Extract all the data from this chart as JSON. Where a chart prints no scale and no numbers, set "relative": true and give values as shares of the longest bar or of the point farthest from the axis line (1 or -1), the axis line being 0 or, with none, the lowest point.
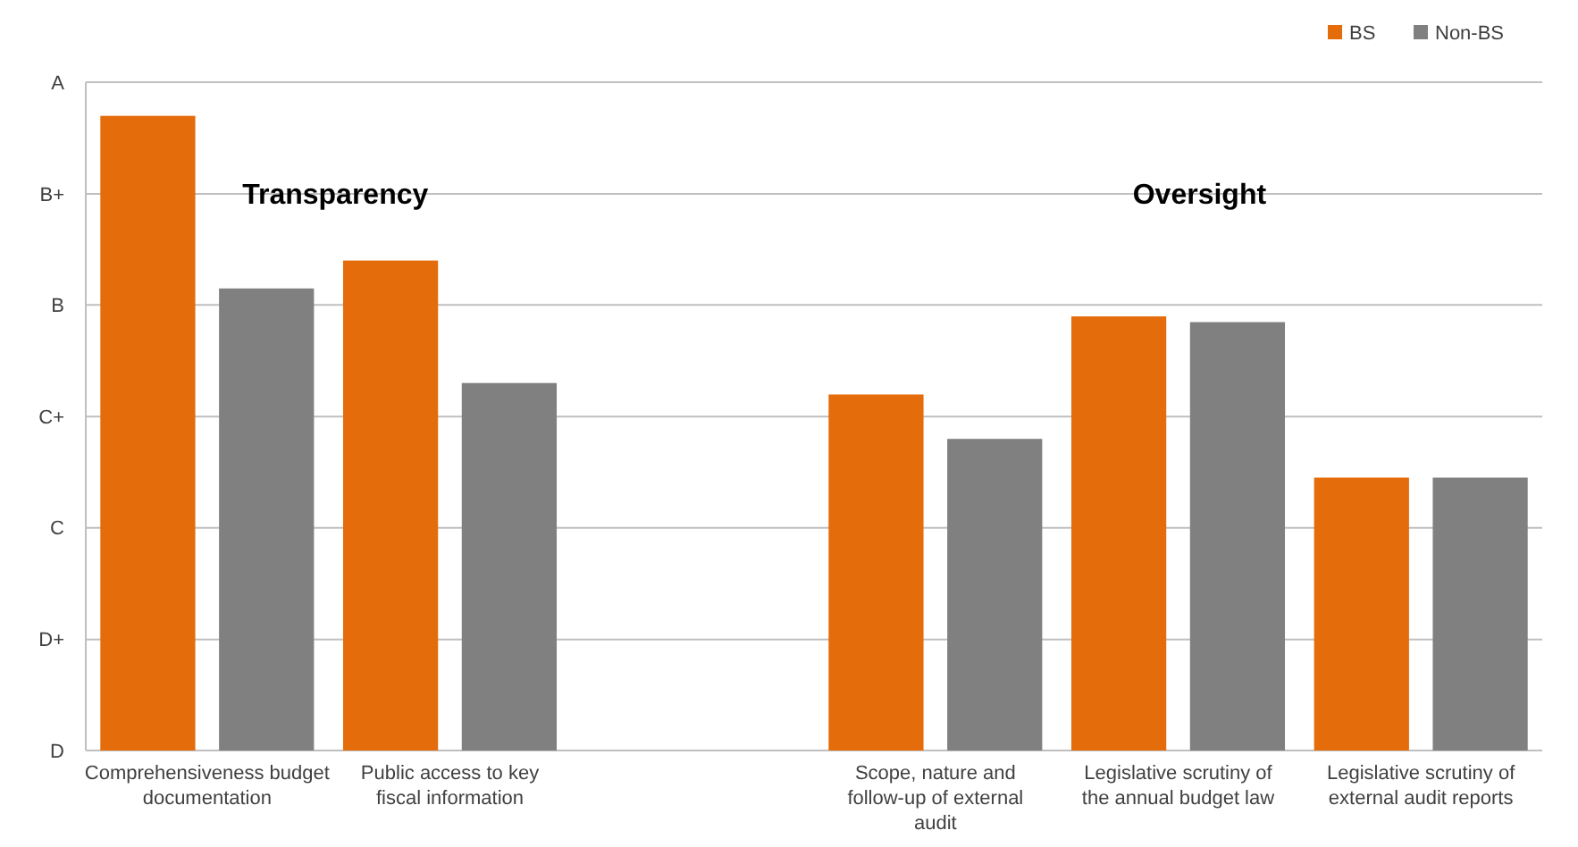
{
  "chart_data": {
    "type": "bar",
    "relative": true,
    "categories": [
      "Comprehensiveness budget documentation",
      "Public access to key fiscal information",
      null,
      "Scope, nature and follow-up of external audit",
      "Legislative scrutiny of the annual budget law",
      "Legislative scrutiny of external audit reports"
    ],
    "series": [
      {
        "name": "BS",
        "color": "#e46c0a",
        "values": [
          1,
          0.772,
          null,
          0.561,
          0.684,
          0.43
        ]
      },
      {
        "name": "Non-BS",
        "color": "#808080",
        "values": [
          0.728,
          0.579,
          null,
          0.491,
          0.675,
          0.43
        ]
      }
    ],
    "ref_lines": [
      {
        "axis": "y",
        "value": 0,
        "label": "D"
      },
      {
        "axis": "y",
        "value": 0.175,
        "label": "D+"
      },
      {
        "axis": "y",
        "value": 0.351,
        "label": "C"
      },
      {
        "axis": "y",
        "value": 0.526,
        "label": "C+"
      },
      {
        "axis": "y",
        "value": 0.702,
        "label": "B"
      },
      {
        "axis": "y",
        "value": 0.877,
        "label": "B+"
      },
      {
        "axis": "y",
        "value": 1.053,
        "label": "A"
      }
    ],
    "legend": "top right",
    "annotations": [
      "Transparency",
      "Oversight"
    ]
  }
}
